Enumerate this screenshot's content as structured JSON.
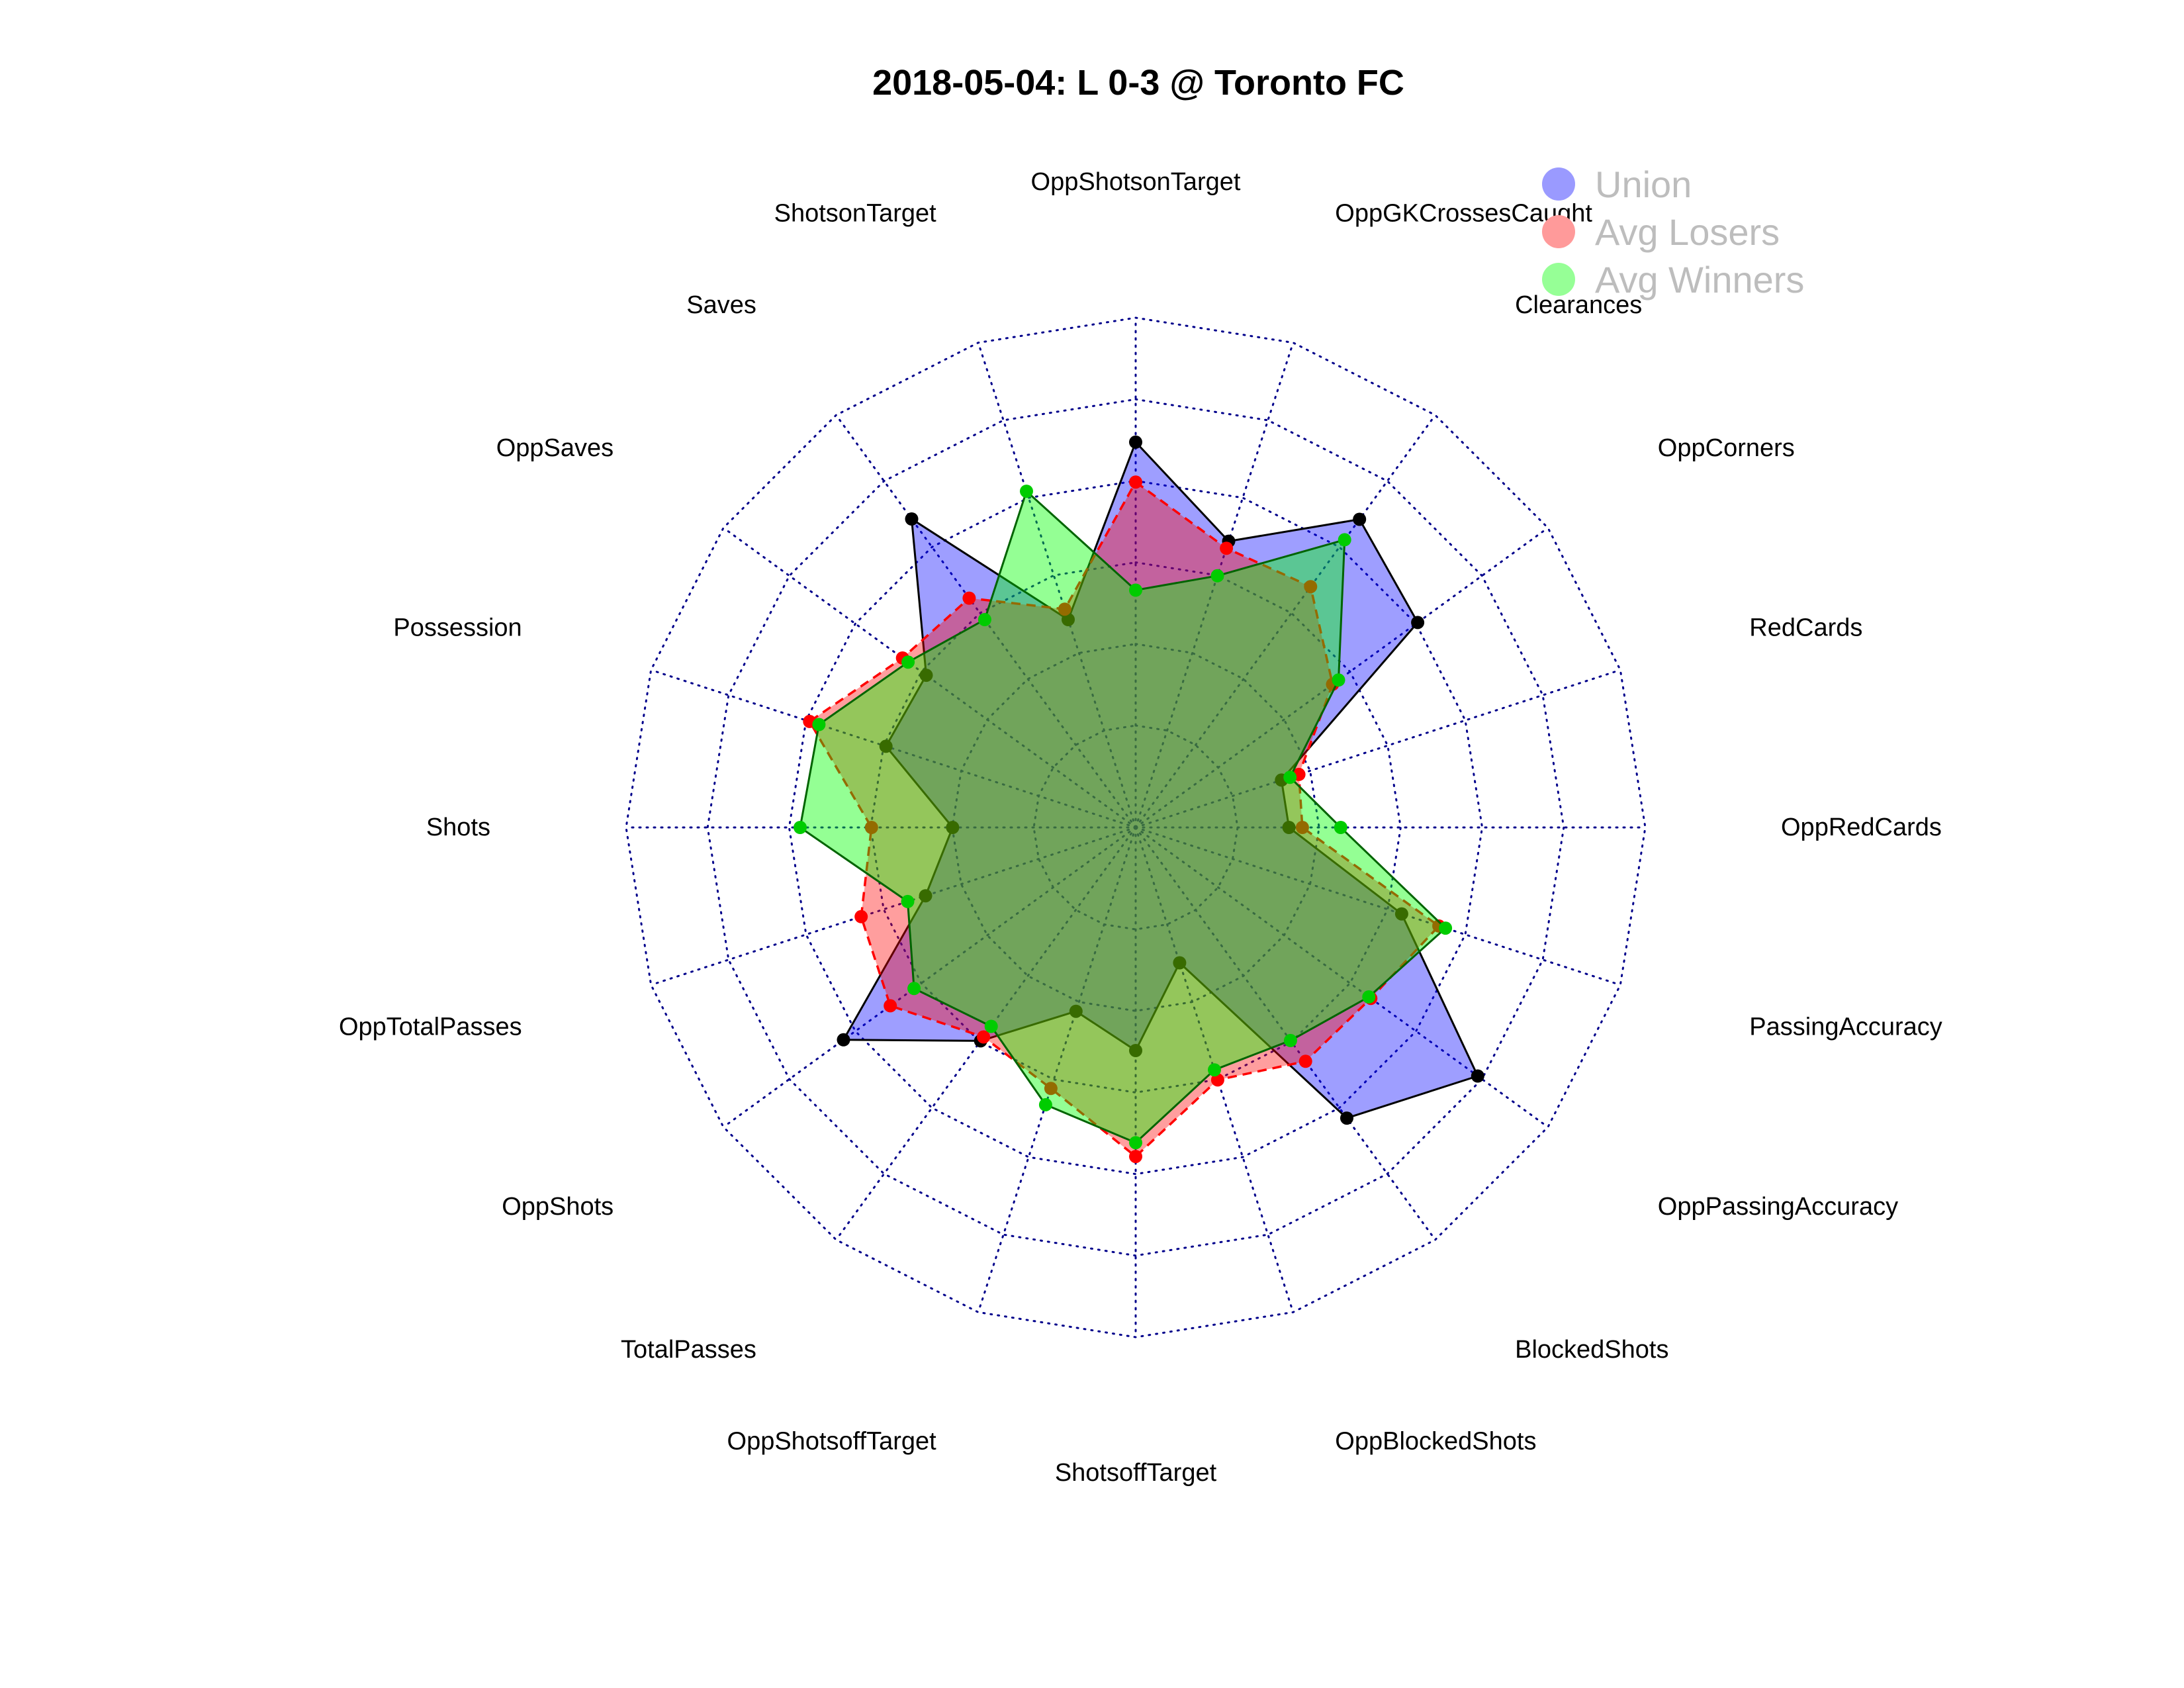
{
  "chart_data": {
    "type": "radar",
    "title": "2018-05-04:  L 0-3   @ Toronto FC",
    "axes": [
      "OppShotsonTarget",
      "OppGKCrossesCaught",
      "Clearances",
      "OppCorners",
      "RedCards",
      "OppRedCards",
      "PassingAccuracy",
      "OppPassingAccuracy",
      "BlockedShots",
      "OppBlockedShots",
      "ShotsoffTarget",
      "OppShotsoffTarget",
      "TotalPasses",
      "OppShots",
      "OppTotalPasses",
      "Shots",
      "Possession",
      "OppSaves",
      "Saves",
      "ShotsonTarget"
    ],
    "rlim": [
      0,
      1
    ],
    "grid_rings": 5,
    "grid": true,
    "legend_position": "top-right",
    "series": [
      {
        "name": "Union",
        "color": "#0000ff",
        "line_style": "solid",
        "values": [
          0.695,
          0.488,
          0.684,
          0.605,
          0.126,
          0.126,
          0.436,
          0.787,
          0.631,
          0.099,
          0.297,
          0.224,
          0.397,
          0.636,
          0.292,
          0.199,
          0.394,
          0.385,
          0.685,
          0.286
        ]
      },
      {
        "name": "Avg Losers",
        "color": "#ff0000",
        "line_style": "dashed",
        "values": [
          0.597,
          0.47,
          0.48,
          0.347,
          0.171,
          0.159,
          0.532,
          0.463,
          0.459,
          0.401,
          0.557,
          0.423,
          0.385,
          0.494,
          0.458,
          0.398,
          0.591,
          0.457,
          0.445,
          0.313
        ]
      },
      {
        "name": "Avg Winners",
        "color": "#00ff00",
        "line_style": "solid",
        "values": [
          0.332,
          0.399,
          0.622,
          0.365,
          0.148,
          0.253,
          0.549,
          0.457,
          0.396,
          0.375,
          0.523,
          0.465,
          0.353,
          0.422,
          0.338,
          0.573,
          0.567,
          0.44,
          0.38,
          0.617
        ]
      }
    ]
  }
}
